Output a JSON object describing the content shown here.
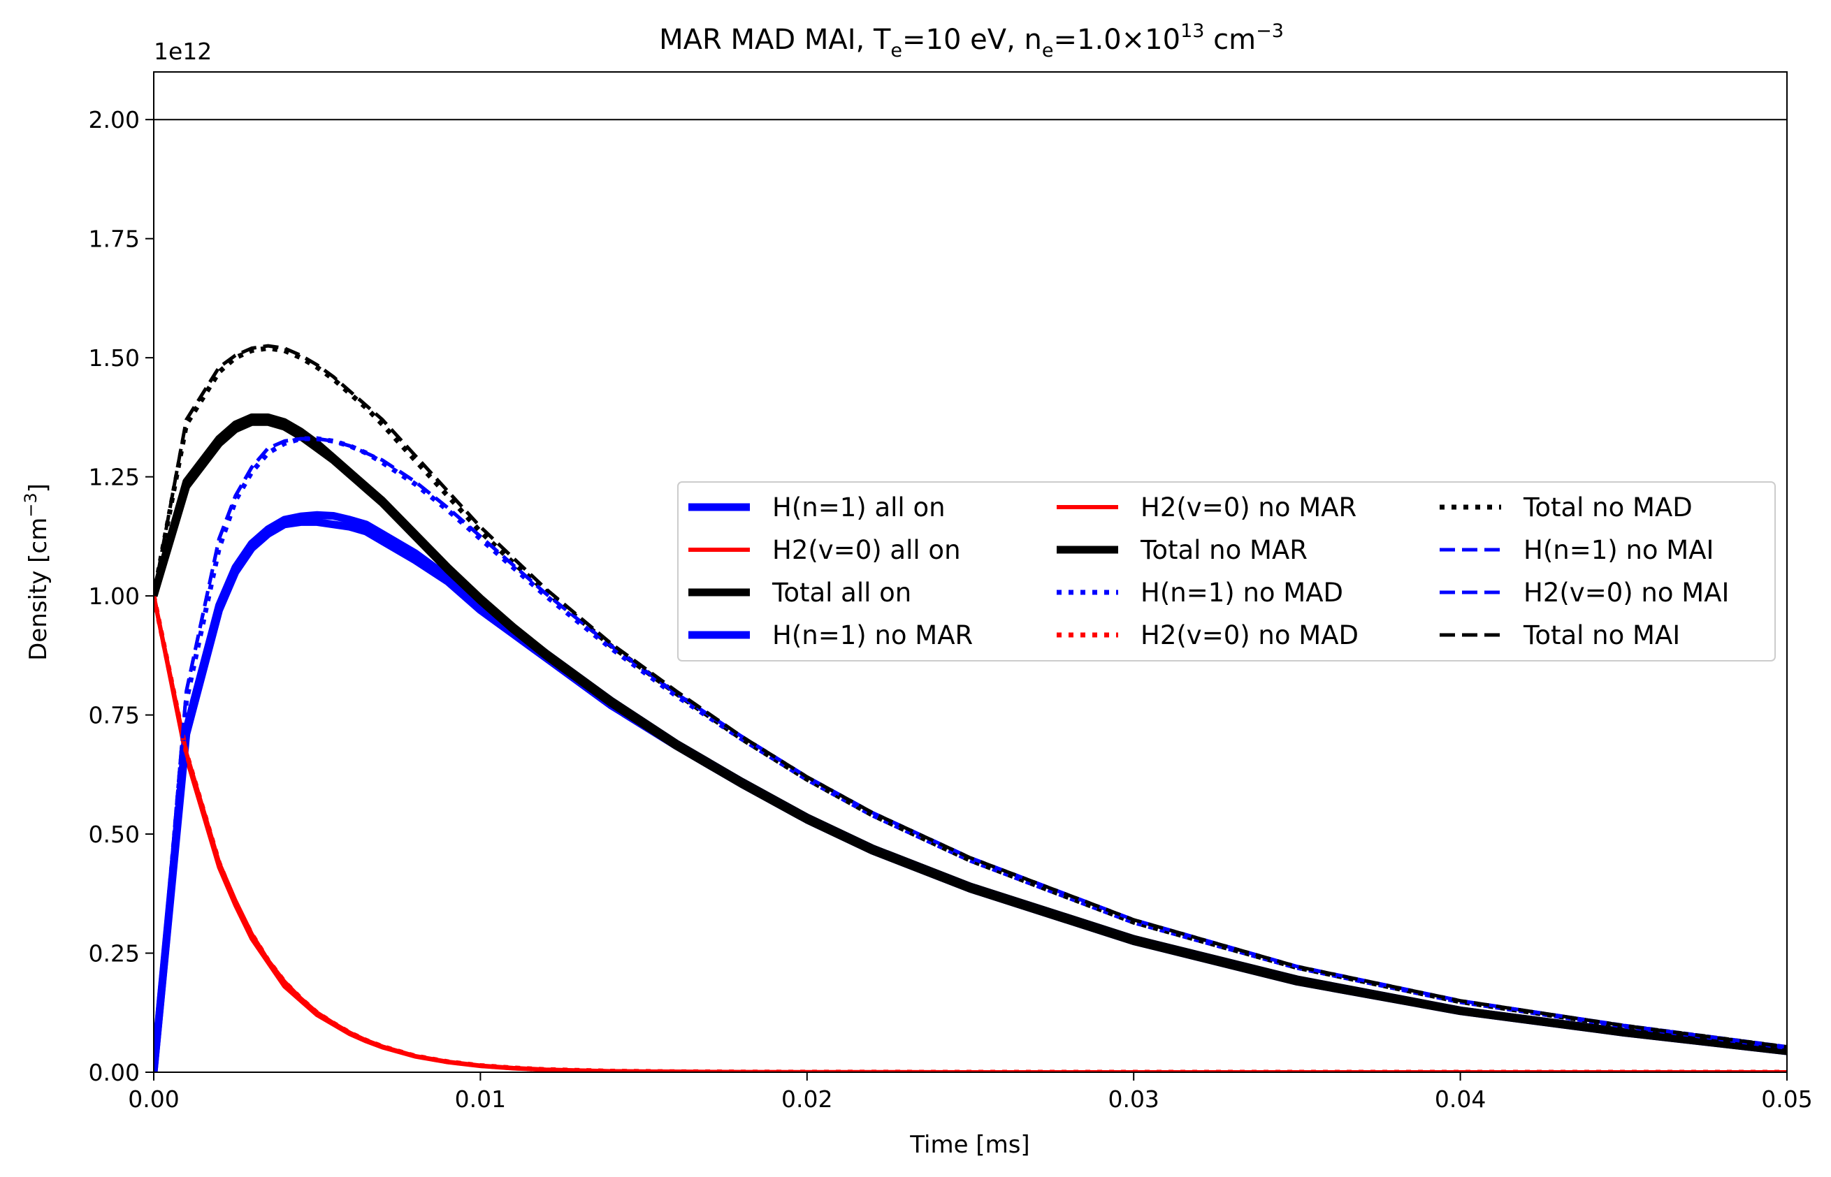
{
  "chart_data": {
    "type": "line",
    "title": {
      "prefix": "MAR MAD MAI,  T",
      "te_sub": "e",
      "te_rest": "=10 eV, n",
      "ne_sub": "e",
      "ne_rest": "=1.0×10",
      "exp": "13",
      "unit": " cm",
      "unit_exp": "−3"
    },
    "xlabel": "Time [ms]",
    "ylabel": "Density [cm",
    "ylabel_exp": "−3",
    "ylabel_close": "]",
    "offset_text": "1e12",
    "xlim": [
      0,
      0.05
    ],
    "ylim": [
      0,
      2.1
    ],
    "y_scale_factor": 1000000000000.0,
    "xticks": [
      0.0,
      0.01,
      0.02,
      0.03,
      0.04,
      0.05
    ],
    "xtick_labels": [
      "0.00",
      "0.01",
      "0.02",
      "0.03",
      "0.04",
      "0.05"
    ],
    "yticks": [
      0.0,
      0.25,
      0.5,
      0.75,
      1.0,
      1.25,
      1.5,
      1.75,
      2.0
    ],
    "ytick_labels": [
      "0.00",
      "0.25",
      "0.50",
      "0.75",
      "1.00",
      "1.25",
      "1.50",
      "1.75",
      "2.00"
    ],
    "reference_line_y": 2.0,
    "grid": false,
    "legend_location": "center-right",
    "legend_columns": 3,
    "colors": {
      "blue": "#0000ff",
      "red": "#ff0000",
      "black": "#000000"
    },
    "x": [
      0,
      0.001,
      0.002,
      0.0025,
      0.003,
      0.0035,
      0.004,
      0.0045,
      0.005,
      0.0055,
      0.006,
      0.0065,
      0.007,
      0.008,
      0.009,
      0.01,
      0.011,
      0.012,
      0.014,
      0.016,
      0.018,
      0.02,
      0.022,
      0.025,
      0.03,
      0.035,
      0.04,
      0.045,
      0.05
    ],
    "series": [
      {
        "name": "H(n=1) all on",
        "color": "#0000ff",
        "style": "solid-thick",
        "values": [
          0,
          0.72,
          0.98,
          1.06,
          1.11,
          1.14,
          1.16,
          1.167,
          1.17,
          1.168,
          1.16,
          1.15,
          1.13,
          1.09,
          1.04,
          0.98,
          0.93,
          0.88,
          0.78,
          0.69,
          0.61,
          0.535,
          0.47,
          0.39,
          0.28,
          0.195,
          0.13,
          0.085,
          0.045
        ]
      },
      {
        "name": "H2(v=0) all on",
        "color": "#ff0000",
        "style": "solid",
        "values": [
          1.0,
          0.66,
          0.43,
          0.35,
          0.28,
          0.23,
          0.18,
          0.15,
          0.12,
          0.1,
          0.08,
          0.065,
          0.052,
          0.033,
          0.021,
          0.013,
          0.008,
          0.005,
          0.002,
          0.001,
          0.0004,
          0.0002,
          0.0001,
          0,
          0,
          0,
          0,
          0,
          0
        ]
      },
      {
        "name": "Total all on",
        "color": "#000000",
        "style": "solid-thick",
        "values": [
          1.0,
          1.24,
          1.33,
          1.36,
          1.375,
          1.375,
          1.365,
          1.345,
          1.32,
          1.29,
          1.26,
          1.23,
          1.2,
          1.13,
          1.06,
          0.995,
          0.935,
          0.88,
          0.78,
          0.69,
          0.61,
          0.535,
          0.47,
          0.39,
          0.28,
          0.195,
          0.13,
          0.085,
          0.045
        ]
      },
      {
        "name": "H(n=1) no MAR",
        "color": "#0000ff",
        "style": "solid-thick",
        "values": [
          0,
          0.71,
          0.97,
          1.05,
          1.1,
          1.13,
          1.15,
          1.155,
          1.155,
          1.15,
          1.145,
          1.135,
          1.115,
          1.075,
          1.03,
          0.97,
          0.92,
          0.87,
          0.77,
          0.685,
          0.605,
          0.53,
          0.465,
          0.385,
          0.275,
          0.19,
          0.128,
          0.083,
          0.044
        ]
      },
      {
        "name": "H2(v=0) no MAR",
        "color": "#ff0000",
        "style": "solid",
        "values": [
          1.0,
          0.67,
          0.44,
          0.36,
          0.29,
          0.235,
          0.19,
          0.155,
          0.125,
          0.103,
          0.083,
          0.067,
          0.054,
          0.034,
          0.022,
          0.014,
          0.009,
          0.0055,
          0.0022,
          0.001,
          0.0004,
          0.0002,
          0.0001,
          0,
          0,
          0,
          0,
          0,
          0
        ]
      },
      {
        "name": "Total no MAR",
        "color": "#000000",
        "style": "solid-thick",
        "values": [
          1.0,
          1.23,
          1.32,
          1.35,
          1.365,
          1.365,
          1.355,
          1.335,
          1.31,
          1.285,
          1.255,
          1.225,
          1.195,
          1.125,
          1.055,
          0.99,
          0.93,
          0.875,
          0.775,
          0.685,
          0.605,
          0.53,
          0.465,
          0.385,
          0.275,
          0.19,
          0.128,
          0.083,
          0.044
        ]
      },
      {
        "name": "H(n=1) no MAD",
        "color": "#0000ff",
        "style": "dotted",
        "values": [
          0,
          0.78,
          1.1,
          1.2,
          1.26,
          1.3,
          1.32,
          1.33,
          1.33,
          1.325,
          1.315,
          1.3,
          1.28,
          1.235,
          1.18,
          1.12,
          1.06,
          1.0,
          0.89,
          0.79,
          0.7,
          0.615,
          0.54,
          0.445,
          0.315,
          0.22,
          0.148,
          0.097,
          0.052
        ]
      },
      {
        "name": "H2(v=0) no MAD",
        "color": "#ff0000",
        "style": "dotted",
        "values": [
          1.0,
          0.67,
          0.44,
          0.355,
          0.29,
          0.235,
          0.19,
          0.155,
          0.125,
          0.103,
          0.083,
          0.067,
          0.054,
          0.034,
          0.022,
          0.014,
          0.009,
          0.0055,
          0.0022,
          0.001,
          0.0004,
          0.0002,
          0.0001,
          0,
          0,
          0,
          0,
          0,
          0
        ]
      },
      {
        "name": "Total no MAD",
        "color": "#000000",
        "style": "dotted",
        "values": [
          1.0,
          1.36,
          1.47,
          1.5,
          1.515,
          1.52,
          1.515,
          1.5,
          1.48,
          1.455,
          1.425,
          1.395,
          1.36,
          1.285,
          1.21,
          1.135,
          1.07,
          1.01,
          0.895,
          0.795,
          0.7,
          0.615,
          0.54,
          0.445,
          0.315,
          0.22,
          0.148,
          0.097,
          0.052
        ]
      },
      {
        "name": "H(n=1) no MAI",
        "color": "#0000ff",
        "style": "dashed",
        "values": [
          0,
          0.8,
          1.12,
          1.21,
          1.27,
          1.31,
          1.325,
          1.33,
          1.33,
          1.325,
          1.315,
          1.3,
          1.285,
          1.24,
          1.185,
          1.125,
          1.065,
          1.005,
          0.895,
          0.795,
          0.705,
          0.62,
          0.545,
          0.45,
          0.32,
          0.222,
          0.15,
          0.098,
          0.053
        ]
      },
      {
        "name": "H2(v=0) no MAI",
        "color": "#0000ff",
        "style": "dashed",
        "values": [
          0,
          0.8,
          1.12,
          1.21,
          1.27,
          1.31,
          1.325,
          1.33,
          1.33,
          1.325,
          1.315,
          1.3,
          1.285,
          1.24,
          1.185,
          1.125,
          1.065,
          1.005,
          0.895,
          0.795,
          0.705,
          0.62,
          0.545,
          0.45,
          0.32,
          0.222,
          0.15,
          0.098,
          0.053
        ]
      },
      {
        "name": "Total no MAI",
        "color": "#000000",
        "style": "dashed",
        "values": [
          1.0,
          1.37,
          1.48,
          1.505,
          1.52,
          1.525,
          1.52,
          1.505,
          1.485,
          1.46,
          1.43,
          1.4,
          1.37,
          1.295,
          1.22,
          1.145,
          1.08,
          1.015,
          0.9,
          0.8,
          0.705,
          0.62,
          0.545,
          0.45,
          0.32,
          0.222,
          0.15,
          0.098,
          0.053
        ]
      }
    ]
  }
}
